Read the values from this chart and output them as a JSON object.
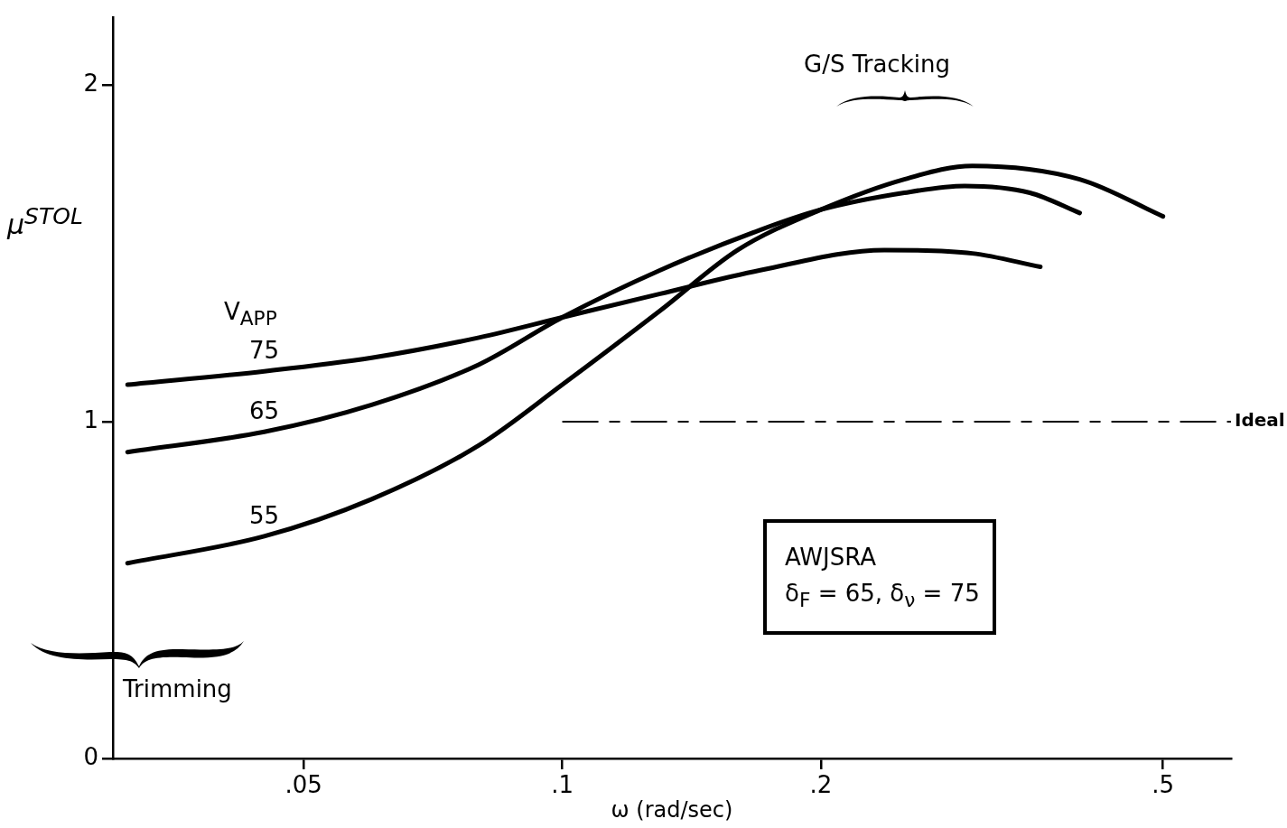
{
  "chart_data": {
    "type": "line",
    "xlabel": "ω (rad/sec)",
    "ylabel": "μ$^{STOL}$",
    "legend_title": "V$_{APP}$",
    "log": "x",
    "marker": "none",
    "legend": false,
    "xlim": [
      0.03,
      0.6
    ],
    "xticks": [
      {
        "value": 0.05,
        "label": ".05"
      },
      {
        "value": 0.1,
        "label": ".1"
      },
      {
        "value": 0.2,
        "label": ".2"
      },
      {
        "value": 0.5,
        "label": ".5"
      }
    ],
    "ylim": [
      0,
      2.2
    ],
    "yticks": [
      0,
      1,
      2
    ],
    "series": [
      {
        "name": "75",
        "color": "#000000",
        "x": [
          0.0312,
          0.045,
          0.06,
          0.08,
          0.1,
          0.13,
          0.17,
          0.237,
          0.3,
          0.36
        ],
        "values": [
          1.11,
          1.15,
          1.19,
          1.25,
          1.31,
          1.38,
          1.45,
          1.51,
          1.5,
          1.46
        ]
      },
      {
        "name": "65",
        "color": "#000000",
        "x": [
          0.0312,
          0.045,
          0.06,
          0.08,
          0.1,
          0.13,
          0.17,
          0.2,
          0.25,
          0.294,
          0.35,
          0.4
        ],
        "values": [
          0.91,
          0.97,
          1.05,
          1.17,
          1.31,
          1.45,
          1.57,
          1.63,
          1.68,
          1.7,
          1.68,
          1.62
        ]
      },
      {
        "name": "55",
        "color": "#000000",
        "x": [
          0.0312,
          0.045,
          0.06,
          0.08,
          0.1,
          0.13,
          0.16,
          0.2,
          0.25,
          0.3,
          0.4,
          0.5
        ],
        "values": [
          0.58,
          0.66,
          0.77,
          0.93,
          1.11,
          1.33,
          1.51,
          1.63,
          1.72,
          1.76,
          1.72,
          1.61
        ]
      }
    ],
    "ref_lines": [
      {
        "axis": "y",
        "value": 1,
        "label": "Ideal",
        "line_style": "dashed",
        "color": "#000000"
      }
    ],
    "annotations": [
      "G/S Tracking",
      "Trimming",
      "AWJSRA",
      "δ$_{F}$ = 65, δ$_{ν}$ = 75"
    ]
  }
}
